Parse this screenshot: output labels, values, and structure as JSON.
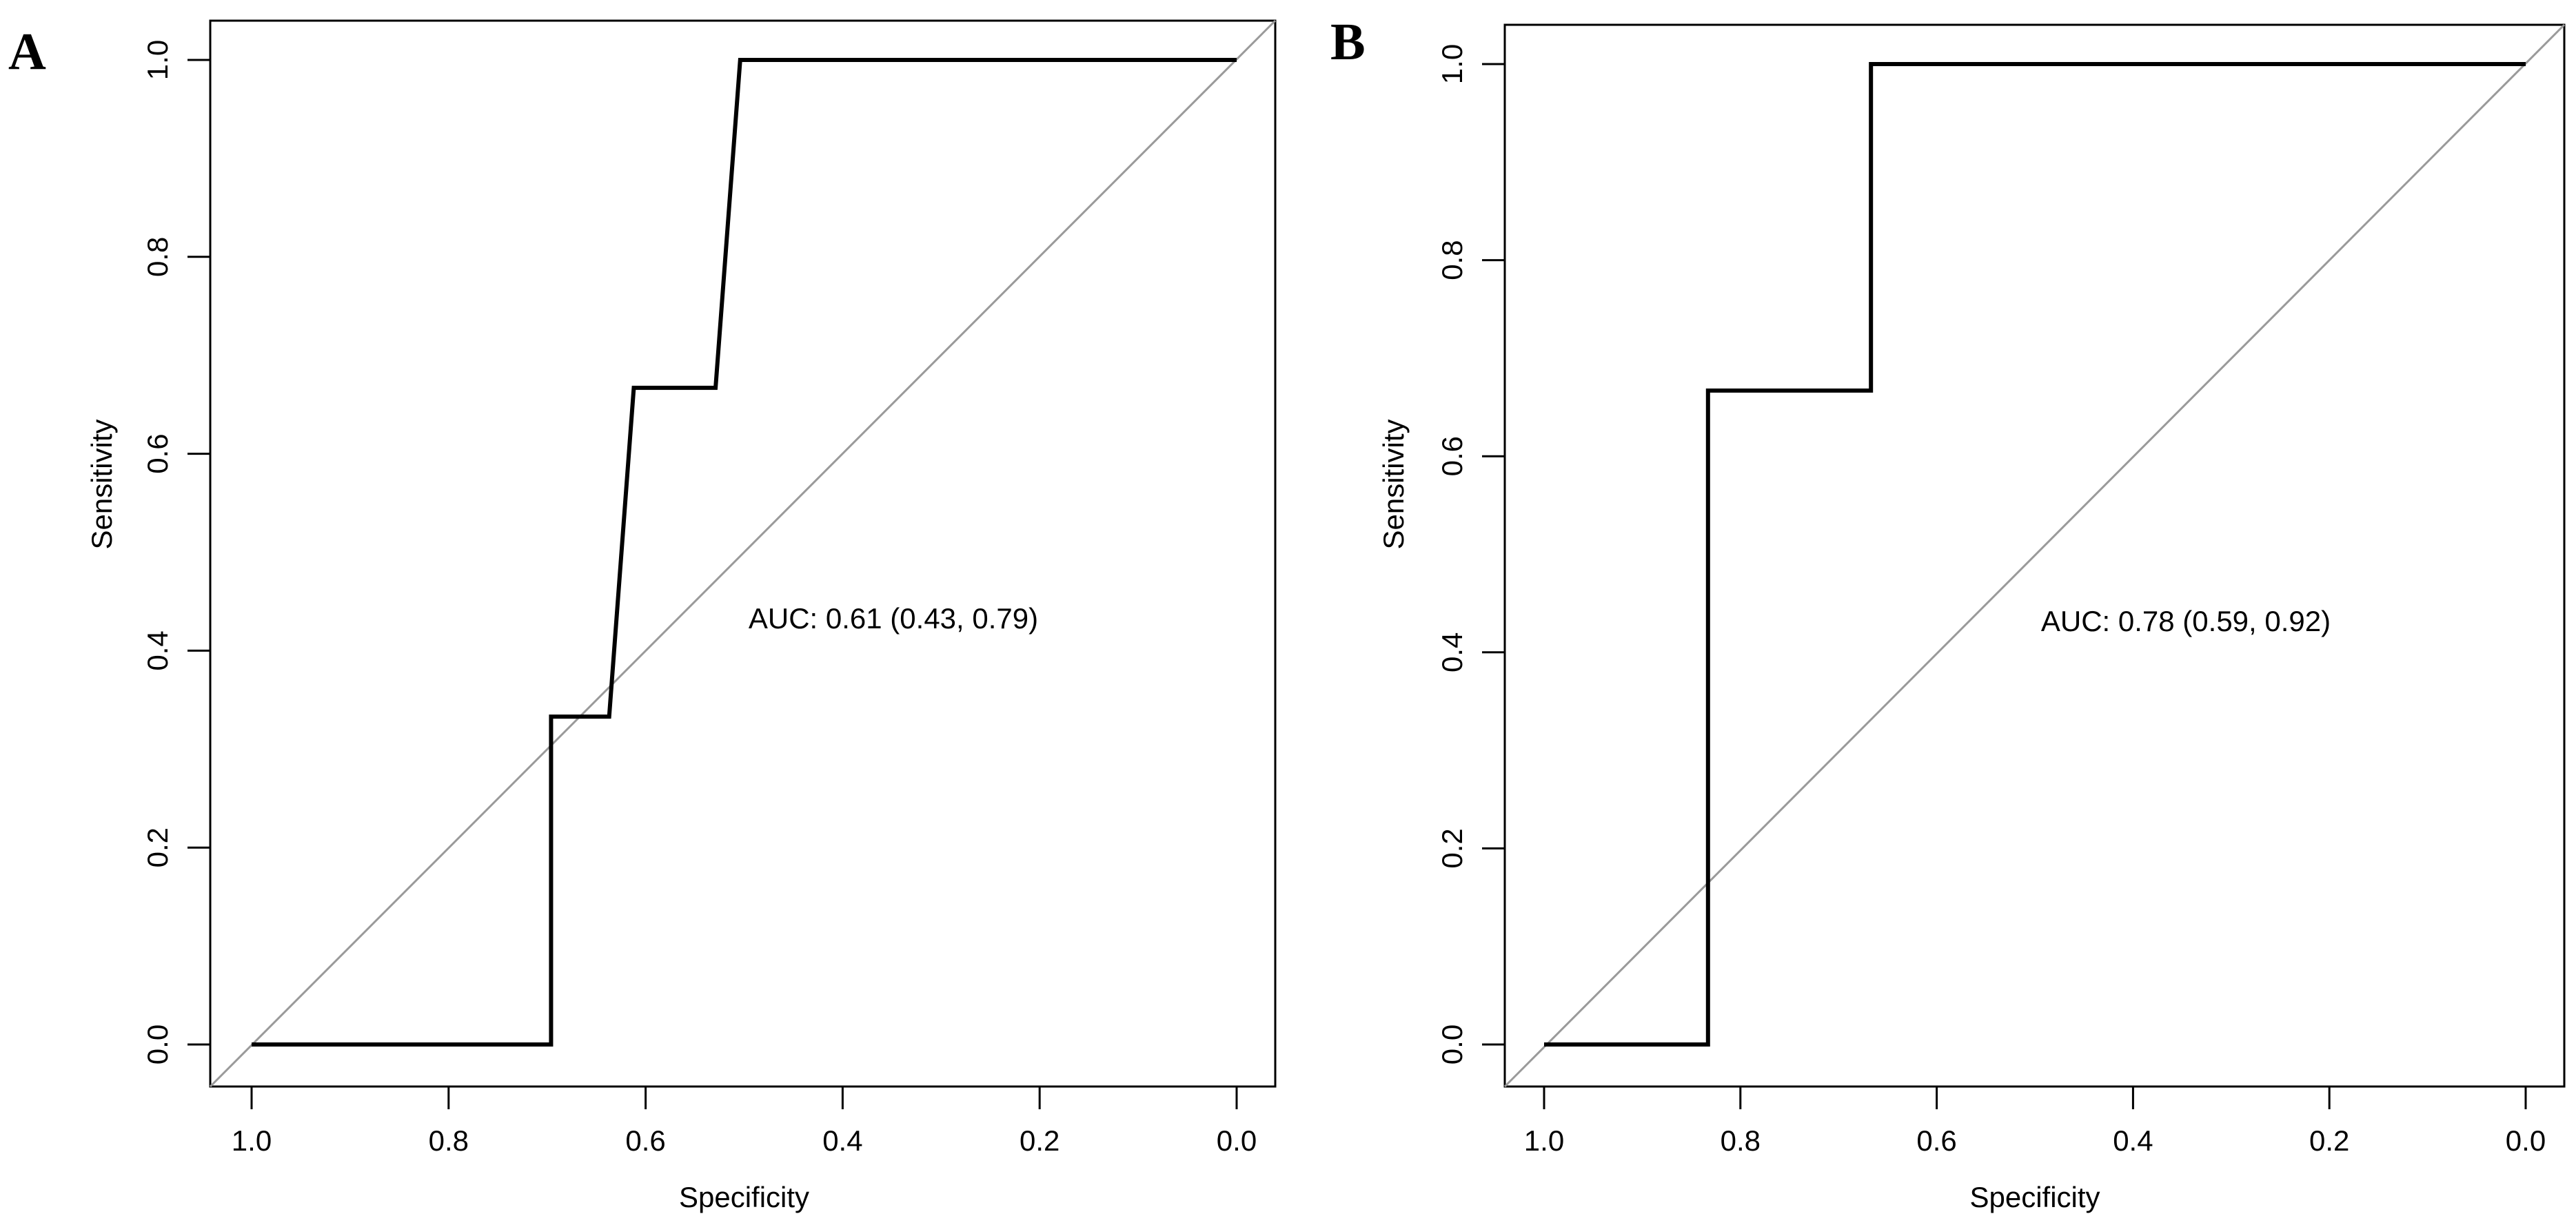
{
  "chart_data": [
    {
      "type": "line",
      "panel_label": "A",
      "xlabel": "Specificity",
      "ylabel": "Sensitivity",
      "xlim": [
        1.0,
        0.0
      ],
      "ylim": [
        0.0,
        1.0
      ],
      "x_ticks": [
        "1.0",
        "0.8",
        "0.6",
        "0.4",
        "0.2",
        "0.0"
      ],
      "y_ticks": [
        "0.0",
        "0.2",
        "0.4",
        "0.6",
        "0.8",
        "1.0"
      ],
      "annotation": "AUC: 0.61 (0.43, 0.79)",
      "series": [
        {
          "name": "ROC curve",
          "color": "#000000",
          "x": [
            1.0,
            0.696,
            0.696,
            0.637,
            0.612,
            0.529,
            0.504,
            0.0
          ],
          "y": [
            0.0,
            0.0,
            0.333,
            0.333,
            0.667,
            0.667,
            1.0,
            1.0
          ]
        }
      ],
      "reference_line": {
        "color": "#9a9a9a",
        "from": [
          1.0,
          0.0
        ],
        "to": [
          0.0,
          1.0
        ]
      }
    },
    {
      "type": "line",
      "panel_label": "B",
      "xlabel": "Specificity",
      "ylabel": "Sensitivity",
      "xlim": [
        1.0,
        0.0
      ],
      "ylim": [
        0.0,
        1.0
      ],
      "x_ticks": [
        "1.0",
        "0.8",
        "0.6",
        "0.4",
        "0.2",
        "0.0"
      ],
      "y_ticks": [
        "0.0",
        "0.2",
        "0.4",
        "0.6",
        "0.8",
        "1.0"
      ],
      "annotation": "AUC: 0.78 (0.59, 0.92)",
      "series": [
        {
          "name": "ROC curve",
          "color": "#000000",
          "x": [
            1.0,
            0.833,
            0.833,
            0.667,
            0.667,
            0.0
          ],
          "y": [
            0.0,
            0.0,
            0.667,
            0.667,
            1.0,
            1.0
          ]
        }
      ],
      "reference_line": {
        "color": "#9a9a9a",
        "from": [
          1.0,
          0.0
        ],
        "to": [
          0.0,
          1.0
        ]
      }
    }
  ]
}
